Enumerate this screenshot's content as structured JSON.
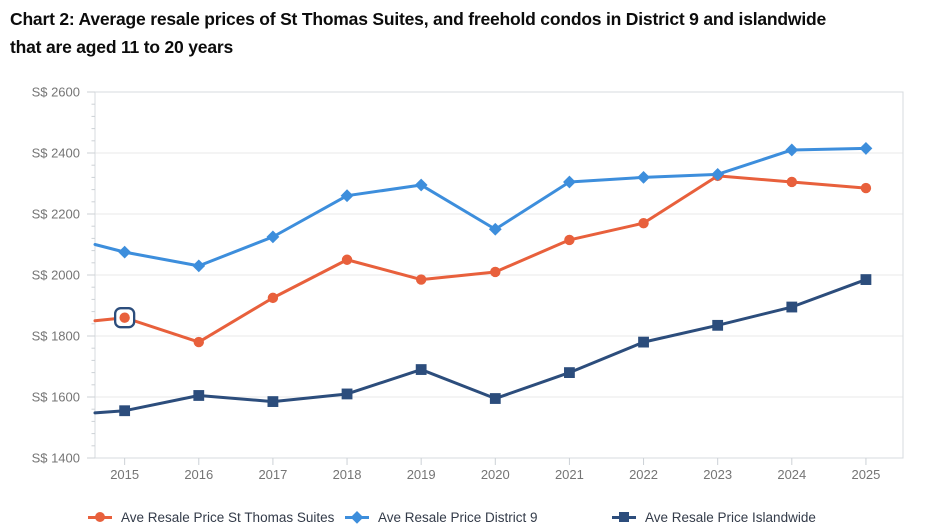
{
  "title": {
    "line1": "Chart 2: Average resale prices of St Thomas Suites, and freehold condos in District 9 and islandwide",
    "line2": "that are aged 11 to 20 years"
  },
  "chart_data": {
    "type": "line",
    "x": [
      2015,
      2016,
      2017,
      2018,
      2019,
      2020,
      2021,
      2022,
      2023,
      2024,
      2025
    ],
    "series": [
      {
        "name": "Ave Resale Price St Thomas Suites",
        "color": "#e8603c",
        "marker": "circle",
        "left_edge_value": 1850,
        "values": [
          1860,
          1780,
          1925,
          2050,
          1985,
          2010,
          2115,
          2170,
          2325,
          2305,
          2285
        ]
      },
      {
        "name": "Ave Resale Price District 9",
        "color": "#3d8edc",
        "marker": "diamond",
        "left_edge_value": 2100,
        "values": [
          2075,
          2030,
          2125,
          2260,
          2295,
          2150,
          2305,
          2320,
          2330,
          2410,
          2415
        ]
      },
      {
        "name": "Ave Resale Price Islandwide",
        "color": "#2c4d7c",
        "marker": "square",
        "left_edge_value": 1548,
        "values": [
          1555,
          1605,
          1585,
          1610,
          1690,
          1595,
          1680,
          1780,
          1835,
          1895,
          1985
        ]
      }
    ],
    "ylim": [
      1400,
      2600
    ],
    "ytick_step": 200,
    "ytick_minor_step": 40,
    "y_tick_label_prefix": "S$ ",
    "y_tick_labels": [
      "S$ 1400",
      "S$ 1600",
      "S$ 1800",
      "S$ 2000",
      "S$ 2200",
      "S$ 2400",
      "S$ 2600"
    ],
    "xlim": [
      2014.6,
      2025.5
    ],
    "grid": "horizontal",
    "legend_position": "bottom",
    "highlight": {
      "series_index": 0,
      "x_index": 0
    },
    "colors": {
      "gridline": "#e9e9e9",
      "plot_border": "#d7dbdf",
      "tick": "#ccd1d6",
      "axis_text": "#757575",
      "highlight_stroke": "#2c4d7c",
      "highlight_fill": "#ffffff",
      "legend_text": "#333b49",
      "title_text": "#0c0c0c"
    }
  }
}
